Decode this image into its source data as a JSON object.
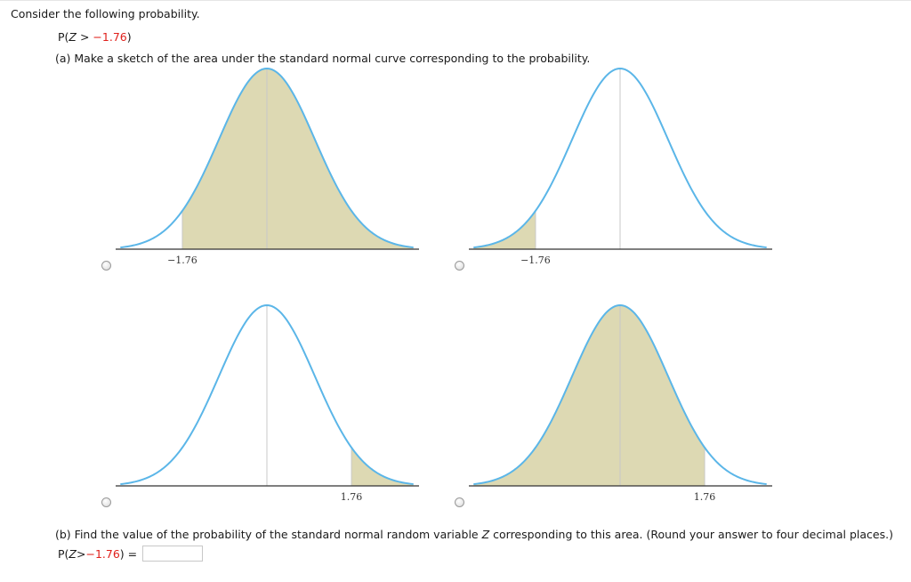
{
  "question": {
    "intro": "Consider the following probability.",
    "probability": {
      "prefix": "P(",
      "variable": "Z",
      "op": " > ",
      "value": "−1.76",
      "suffix": ")"
    },
    "part_a": "(a) Make a sketch of the area under the standard normal curve corresponding to the probability.",
    "part_b": {
      "text_before": "(b) Find the value of the probability of the standard normal random variable ",
      "variable": "Z",
      "text_after": " corresponding to this area. (Round your answer to four decimal places.)"
    },
    "answer": {
      "prefix": "P(",
      "variable": "Z",
      "op": " > ",
      "value": "−1.76",
      "suffix": ") =",
      "input_value": ""
    }
  },
  "options": [
    {
      "id": "A",
      "shade": "right-of-cut",
      "cut": -1.76,
      "tick_label": "−1.76",
      "selected": false
    },
    {
      "id": "B",
      "shade": "left-of-cut",
      "cut": -1.76,
      "tick_label": "−1.76",
      "selected": false
    },
    {
      "id": "C",
      "shade": "right-of-cut",
      "cut": 1.76,
      "tick_label": "1.76",
      "selected": false
    },
    {
      "id": "D",
      "shade": "left-of-cut",
      "cut": 1.76,
      "tick_label": "1.76",
      "selected": false
    }
  ],
  "colors": {
    "curve": "#5bb6e8",
    "shade": "#ddd9b3",
    "axis": "#333333",
    "center_line": "#c8c8c8",
    "negative_number": "#e0201b"
  }
}
